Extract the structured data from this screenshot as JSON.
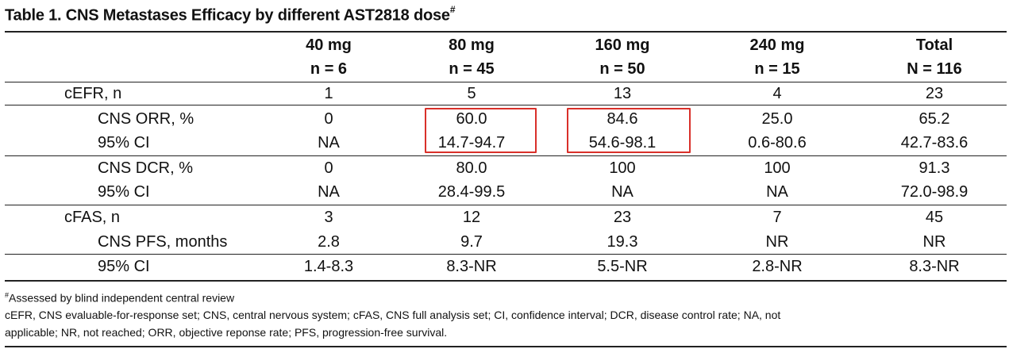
{
  "title": {
    "text": "Table 1. CNS Metastases Efficacy by different AST2818 dose",
    "mark": "#"
  },
  "columns": [
    {
      "dose": "40 mg",
      "n": "n = 6"
    },
    {
      "dose": "80 mg",
      "n": "n = 45"
    },
    {
      "dose": "160 mg",
      "n": "n = 50"
    },
    {
      "dose": "240 mg",
      "n": "n = 15"
    },
    {
      "dose": "Total",
      "n": "N = 116"
    }
  ],
  "rows": [
    {
      "label": "cEFR, n",
      "values": [
        "1",
        "5",
        "13",
        "4",
        "23"
      ]
    },
    {
      "label": "CNS ORR, %",
      "values": [
        "0",
        "60.0",
        "84.6",
        "25.0",
        "65.2"
      ]
    },
    {
      "label": "95% CI",
      "values": [
        "NA",
        "14.7-94.7",
        "54.6-98.1",
        "0.6-80.6",
        "42.7-83.6"
      ]
    },
    {
      "label": "CNS DCR, %",
      "values": [
        "0",
        "80.0",
        "100",
        "100",
        "91.3"
      ]
    },
    {
      "label": "95% CI",
      "values": [
        "NA",
        "28.4-99.5",
        "NA",
        "NA",
        "72.0-98.9"
      ]
    },
    {
      "label": "cFAS, n",
      "values": [
        "3",
        "12",
        "23",
        "7",
        "45"
      ]
    },
    {
      "label": "CNS PFS, months",
      "values": [
        "2.8",
        "9.7",
        "19.3",
        "NR",
        "NR"
      ]
    },
    {
      "label": "95% CI",
      "values": [
        "1.4-8.3",
        "8.3-NR",
        "5.5-NR",
        "2.8-NR",
        "8.3-NR"
      ]
    }
  ],
  "footnotes": {
    "mark": "#",
    "assessed": "Assessed by blind independent central review",
    "abbrev_line1": "cEFR, CNS evaluable-for-response set; CNS, central nervous system; cFAS, CNS full analysis set; CI, confidence interval; DCR, disease control rate; NA, not",
    "abbrev_line2": "applicable; NR, not reached; ORR, objective reponse rate; PFS, progression-free survival."
  },
  "colors": {
    "highlight_border": "#d9302a",
    "rule": "#222222"
  }
}
